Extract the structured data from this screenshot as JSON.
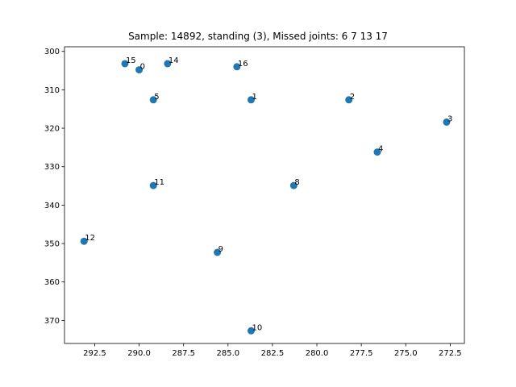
{
  "chart_data": {
    "type": "scatter",
    "title": "Sample: 14892, standing (3), Missed joints: 6  7  13  17",
    "xlabel": "",
    "ylabel": "",
    "xlim": [
      294.2,
      271.7
    ],
    "ylim": [
      376.0,
      298.8
    ],
    "x_inverted": true,
    "y_inverted": true,
    "grid": false,
    "marker_color": "#1f77b4",
    "x_ticks": [
      {
        "value": 292.5,
        "label": "292.5"
      },
      {
        "value": 290.0,
        "label": "290.0"
      },
      {
        "value": 287.5,
        "label": "287.5"
      },
      {
        "value": 285.0,
        "label": "285.0"
      },
      {
        "value": 282.5,
        "label": "282.5"
      },
      {
        "value": 280.0,
        "label": "280.0"
      },
      {
        "value": 277.5,
        "label": "277.5"
      },
      {
        "value": 275.0,
        "label": "275.0"
      },
      {
        "value": 272.5,
        "label": "272.5"
      }
    ],
    "y_ticks": [
      {
        "value": 300,
        "label": "300"
      },
      {
        "value": 310,
        "label": "310"
      },
      {
        "value": 320,
        "label": "320"
      },
      {
        "value": 330,
        "label": "330"
      },
      {
        "value": 340,
        "label": "340"
      },
      {
        "value": 350,
        "label": "350"
      },
      {
        "value": 360,
        "label": "360"
      },
      {
        "value": 370,
        "label": "370"
      }
    ],
    "points": [
      {
        "label": "0",
        "x": 290.0,
        "y": 304.8
      },
      {
        "label": "1",
        "x": 283.7,
        "y": 312.6
      },
      {
        "label": "2",
        "x": 278.2,
        "y": 312.6
      },
      {
        "label": "3",
        "x": 272.7,
        "y": 318.4
      },
      {
        "label": "4",
        "x": 276.6,
        "y": 326.2
      },
      {
        "label": "5",
        "x": 289.2,
        "y": 312.6
      },
      {
        "label": "8",
        "x": 281.3,
        "y": 334.9
      },
      {
        "label": "9",
        "x": 285.6,
        "y": 352.3
      },
      {
        "label": "10",
        "x": 283.7,
        "y": 372.7
      },
      {
        "label": "11",
        "x": 289.2,
        "y": 334.9
      },
      {
        "label": "12",
        "x": 293.1,
        "y": 349.4
      },
      {
        "label": "14",
        "x": 288.4,
        "y": 303.2
      },
      {
        "label": "15",
        "x": 290.8,
        "y": 303.2
      },
      {
        "label": "16",
        "x": 284.5,
        "y": 304.0
      }
    ]
  }
}
